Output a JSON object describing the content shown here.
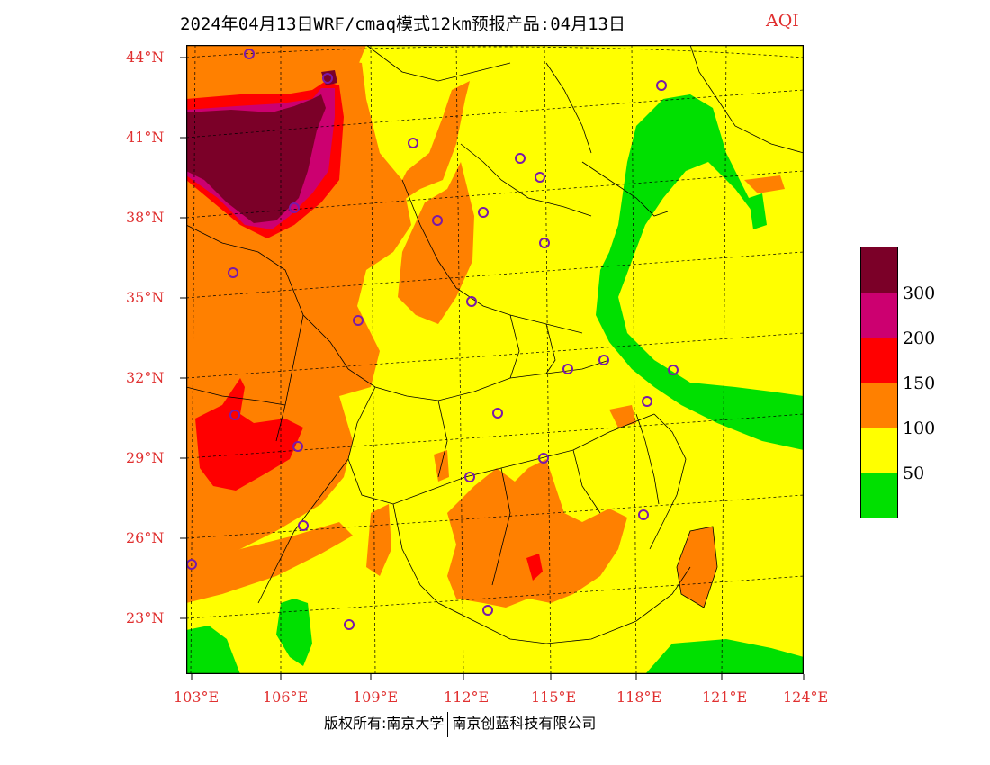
{
  "title": "2024年04月13日WRF/cmaq模式12km预报产品:04月13日",
  "variable": "AQI",
  "lat_labels": [
    "44°N",
    "41°N",
    "38°N",
    "35°N",
    "32°N",
    "29°N",
    "26°N",
    "23°N"
  ],
  "lon_labels": [
    "103°E",
    "106°E",
    "109°E",
    "112°E",
    "115°E",
    "118°E",
    "121°E",
    "124°E"
  ],
  "legend": {
    "colors": [
      "#7b0028",
      "#cc0070",
      "#ff0000",
      "#ff8000",
      "#ffff00",
      "#00e000"
    ],
    "labels": [
      "300",
      "200",
      "150",
      "100",
      "50"
    ]
  },
  "footer": {
    "left": "版权所有:南京大学",
    "right": "南京创蓝科技有限公司"
  },
  "colors": {
    "good": "#00e000",
    "moderate": "#ffff00",
    "usg": "#ff8000",
    "unhealthy": "#ff0000",
    "very_unhealthy": "#cc0070",
    "hazardous": "#7b0028",
    "axis_label": "#e03030",
    "city_marker": "#7a1aa8"
  }
}
